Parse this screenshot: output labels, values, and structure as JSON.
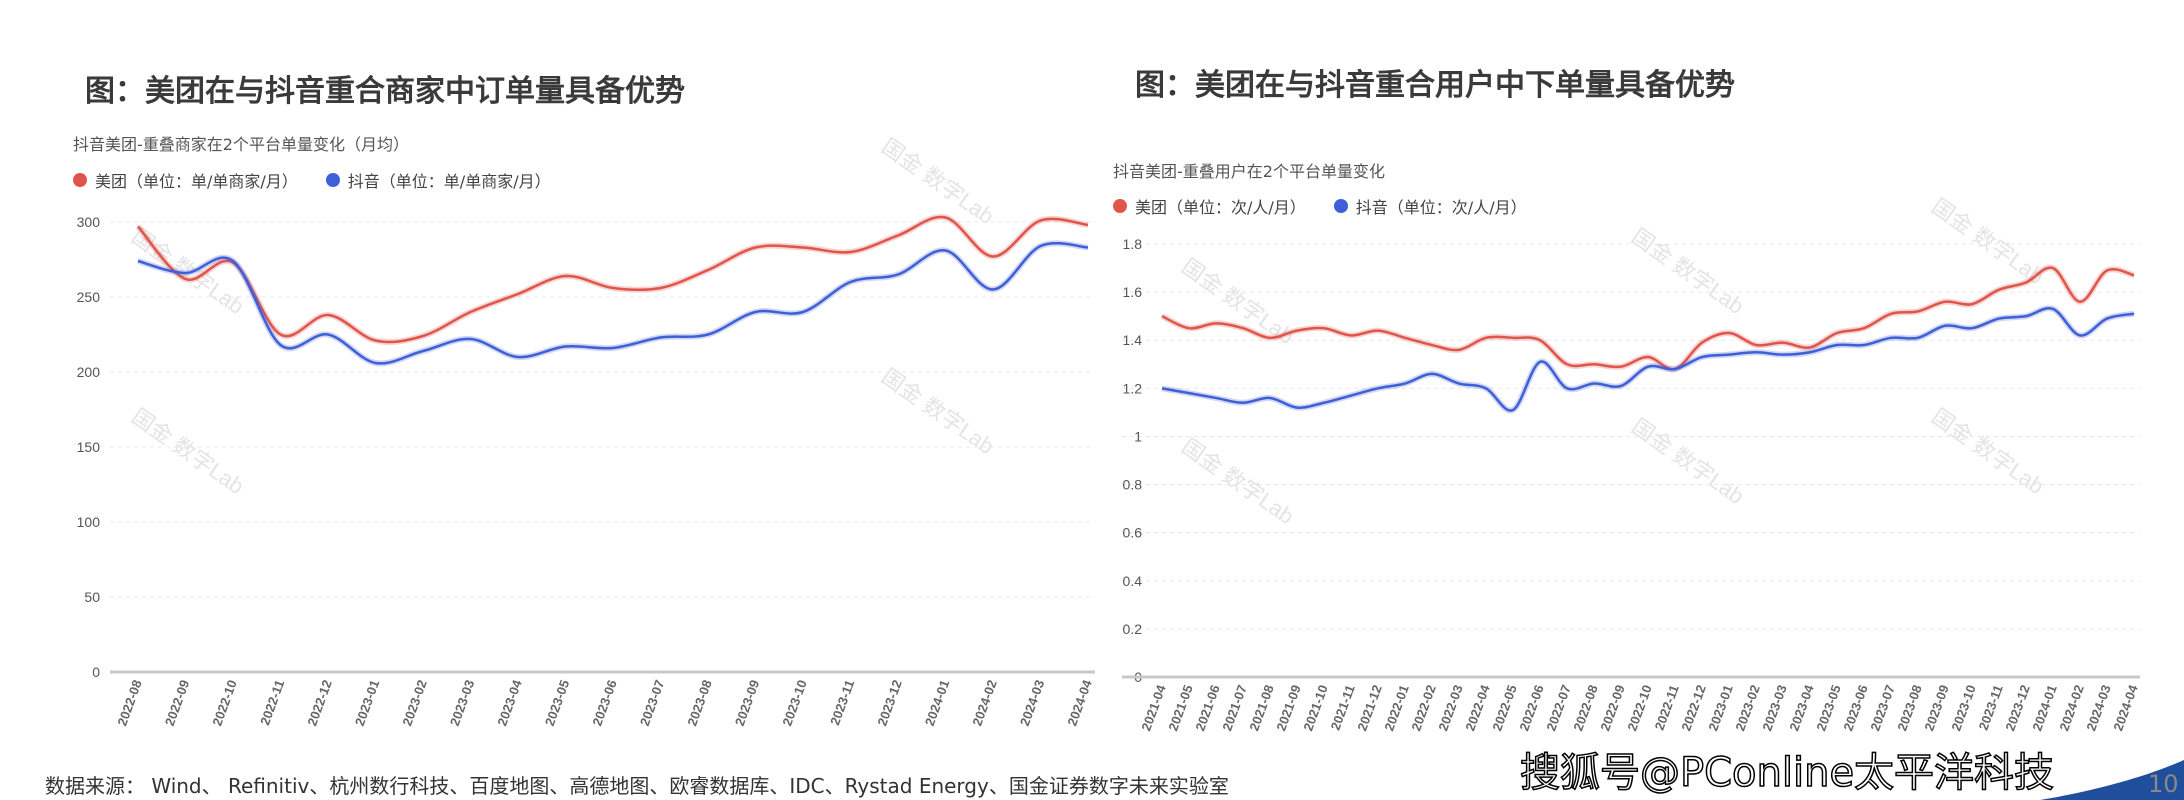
{
  "left": {
    "heading": "图：美团在与抖音重合商家中订单量具备优势",
    "chart_title": "抖音美团-重叠商家在2个平台单量变化（月均）",
    "legend": [
      "美团（单位：单/单商家/月）",
      "抖音（单位：单/单商家/月）"
    ]
  },
  "right": {
    "heading": "图：美团在与抖音重合用户中下单量具备优势",
    "chart_title": "抖音美团-重叠用户在2个平台单量变化",
    "legend": [
      "美团（单位：次/人/月）",
      "抖音（单位：次/人/月）"
    ]
  },
  "footer": {
    "source": "数据来源： Wind、 Refinitiv、杭州数行科技、百度地图、高德地图、欧睿数据库、IDC、Rystad Energy、国金证券数字未来实验室",
    "overlay_watermark": "搜狐号@PConline太平洋科技",
    "page_number": "10"
  },
  "watermark": "国金 数字Lab",
  "colors": {
    "meituan": "#e0554b",
    "douyin": "#3f5fd8",
    "grid": "#e6e6e6",
    "accent": "#1f4e9c"
  },
  "chart_data": [
    {
      "type": "line",
      "title": "抖音美团-重叠商家在2个平台单量变化（月均）",
      "xlabel": "",
      "ylabel": "",
      "ylim": [
        0,
        300
      ],
      "yticks": [
        0,
        50,
        100,
        150,
        200,
        250,
        300
      ],
      "grid": true,
      "legend_position": "top-left",
      "categories": [
        "2022-08",
        "2022-09",
        "2022-10",
        "2022-11",
        "2022-12",
        "2023-01",
        "2023-02",
        "2023-03",
        "2023-04",
        "2023-05",
        "2023-06",
        "2023-07",
        "2023-08",
        "2023-09",
        "2023-10",
        "2023-11",
        "2023-12",
        "2024-01",
        "2024-02",
        "2024-03",
        "2024-04"
      ],
      "series": [
        {
          "name": "美团（单位：单/单商家/月）",
          "color": "#e0554b",
          "values": [
            297,
            262,
            273,
            225,
            238,
            221,
            224,
            240,
            252,
            264,
            256,
            256,
            268,
            283,
            283,
            280,
            291,
            303,
            277,
            301,
            298
          ]
        },
        {
          "name": "抖音（单位：单/单商家/月）",
          "color": "#3f5fd8",
          "values": [
            274,
            266,
            274,
            218,
            225,
            206,
            214,
            222,
            210,
            217,
            216,
            223,
            225,
            240,
            240,
            260,
            265,
            281,
            255,
            284,
            283
          ]
        }
      ]
    },
    {
      "type": "line",
      "title": "抖音美团-重叠用户在2个平台单量变化",
      "xlabel": "",
      "ylabel": "",
      "ylim": [
        0,
        1.8
      ],
      "yticks": [
        0,
        0.2,
        0.4,
        0.6,
        0.8,
        1,
        1.2,
        1.4,
        1.6,
        1.8
      ],
      "grid": true,
      "legend_position": "top-left",
      "categories": [
        "2021-04",
        "2021-05",
        "2021-06",
        "2021-07",
        "2021-08",
        "2021-09",
        "2021-10",
        "2021-11",
        "2021-12",
        "2022-01",
        "2022-02",
        "2022-03",
        "2022-04",
        "2022-05",
        "2022-06",
        "2022-07",
        "2022-08",
        "2022-09",
        "2022-10",
        "2022-11",
        "2022-12",
        "2023-01",
        "2023-02",
        "2023-03",
        "2023-04",
        "2023-05",
        "2023-06",
        "2023-07",
        "2023-08",
        "2023-09",
        "2023-10",
        "2023-11",
        "2023-12",
        "2024-01",
        "2024-02",
        "2024-03",
        "2024-04"
      ],
      "series": [
        {
          "name": "美团（单位：次/人/月）",
          "color": "#e0554b",
          "values": [
            1.5,
            1.45,
            1.47,
            1.45,
            1.41,
            1.44,
            1.45,
            1.42,
            1.44,
            1.41,
            1.38,
            1.36,
            1.41,
            1.41,
            1.4,
            1.3,
            1.3,
            1.29,
            1.33,
            1.28,
            1.39,
            1.43,
            1.38,
            1.39,
            1.37,
            1.43,
            1.45,
            1.51,
            1.52,
            1.56,
            1.55,
            1.61,
            1.64,
            1.7,
            1.56,
            1.69,
            1.67
          ]
        },
        {
          "name": "抖音（单位：次/人/月）",
          "color": "#3f5fd8",
          "values": [
            1.2,
            1.18,
            1.16,
            1.14,
            1.16,
            1.12,
            1.14,
            1.17,
            1.2,
            1.22,
            1.26,
            1.22,
            1.2,
            1.11,
            1.31,
            1.2,
            1.22,
            1.21,
            1.29,
            1.28,
            1.33,
            1.34,
            1.35,
            1.34,
            1.35,
            1.38,
            1.38,
            1.41,
            1.41,
            1.46,
            1.45,
            1.49,
            1.5,
            1.53,
            1.42,
            1.49,
            1.51
          ]
        }
      ]
    }
  ]
}
